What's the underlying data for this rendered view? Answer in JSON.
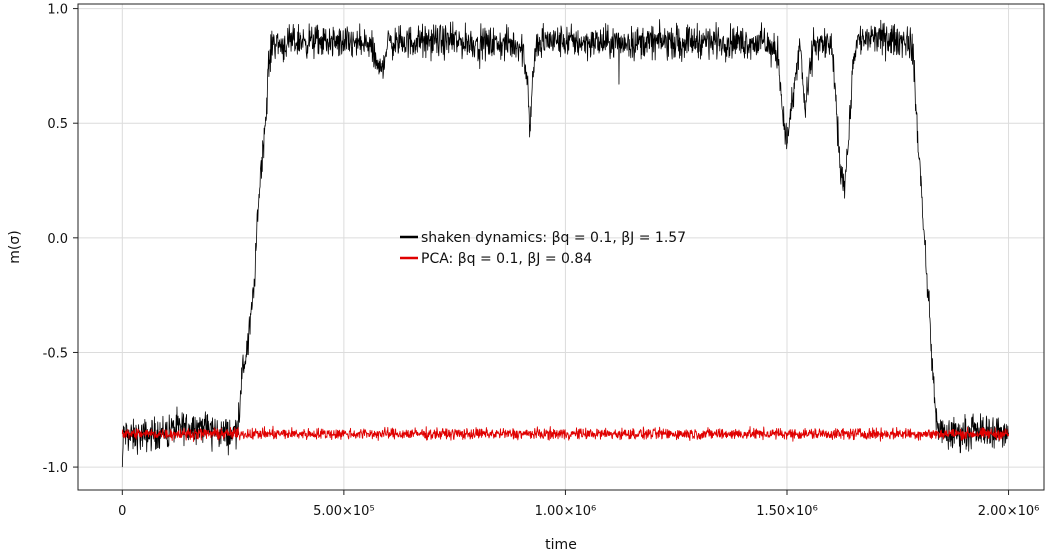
{
  "chart_data": {
    "type": "line",
    "title": "",
    "xlabel": "time",
    "ylabel": "m(σ)",
    "xlim": [
      -100000,
      2080000
    ],
    "ylim": [
      -1.1,
      1.02
    ],
    "grid": true,
    "legend_position": "center",
    "x_ticks": [
      {
        "value": 0,
        "label": "0"
      },
      {
        "value": 500000,
        "label": "5.00×10⁵"
      },
      {
        "value": 1000000,
        "label": "1.00×10⁶"
      },
      {
        "value": 1500000,
        "label": "1.50×10⁶"
      },
      {
        "value": 2000000,
        "label": "2.00×10⁶"
      }
    ],
    "y_ticks": [
      {
        "value": -1.0,
        "label": "-1.0"
      },
      {
        "value": -0.5,
        "label": "-0.5"
      },
      {
        "value": 0.0,
        "label": "0.0"
      },
      {
        "value": 0.5,
        "label": "0.5"
      },
      {
        "value": 1.0,
        "label": "1.0"
      }
    ],
    "series": [
      {
        "name": "shaken dynamics: βq = 0.1, βJ = 1.57",
        "color": "#000000",
        "noise": 0.035,
        "x": [
          0,
          3000,
          20000,
          60000,
          100000,
          140000,
          180000,
          220000,
          250000,
          262000,
          270000,
          280000,
          290000,
          300000,
          305000,
          312000,
          318000,
          325000,
          330000,
          340000,
          360000,
          400000,
          500000,
          560000,
          580000,
          600000,
          700000,
          800000,
          900000,
          915000,
          920000,
          925000,
          935000,
          950000,
          1100000,
          1300000,
          1450000,
          1480000,
          1490000,
          1500000,
          1520000,
          1530000,
          1540000,
          1560000,
          1600000,
          1610000,
          1620000,
          1630000,
          1640000,
          1650000,
          1660000,
          1700000,
          1750000,
          1775000,
          1785000,
          1790000,
          1800000,
          1810000,
          1820000,
          1830000,
          1835000,
          1850000,
          1900000,
          1950000,
          2000000
        ],
        "y": [
          -1.0,
          -0.85,
          -0.87,
          -0.86,
          -0.84,
          -0.83,
          -0.82,
          -0.85,
          -0.86,
          -0.8,
          -0.6,
          -0.5,
          -0.35,
          -0.15,
          0.1,
          0.3,
          0.4,
          0.55,
          0.75,
          0.86,
          0.84,
          0.86,
          0.85,
          0.84,
          0.72,
          0.85,
          0.86,
          0.85,
          0.84,
          0.7,
          0.45,
          0.68,
          0.84,
          0.86,
          0.85,
          0.86,
          0.85,
          0.8,
          0.55,
          0.42,
          0.7,
          0.85,
          0.55,
          0.85,
          0.84,
          0.6,
          0.3,
          0.25,
          0.45,
          0.8,
          0.86,
          0.87,
          0.86,
          0.86,
          0.8,
          0.6,
          0.3,
          0.0,
          -0.3,
          -0.6,
          -0.78,
          -0.86,
          -0.85,
          -0.84,
          -0.85
        ]
      },
      {
        "name": "PCA: βq = 0.1, βJ = 0.84",
        "color": "#e00000",
        "noise": 0.012,
        "x": [
          0,
          500000,
          1000000,
          1500000,
          2000000
        ],
        "y": [
          -0.855,
          -0.855,
          -0.855,
          -0.855,
          -0.855
        ]
      }
    ]
  }
}
